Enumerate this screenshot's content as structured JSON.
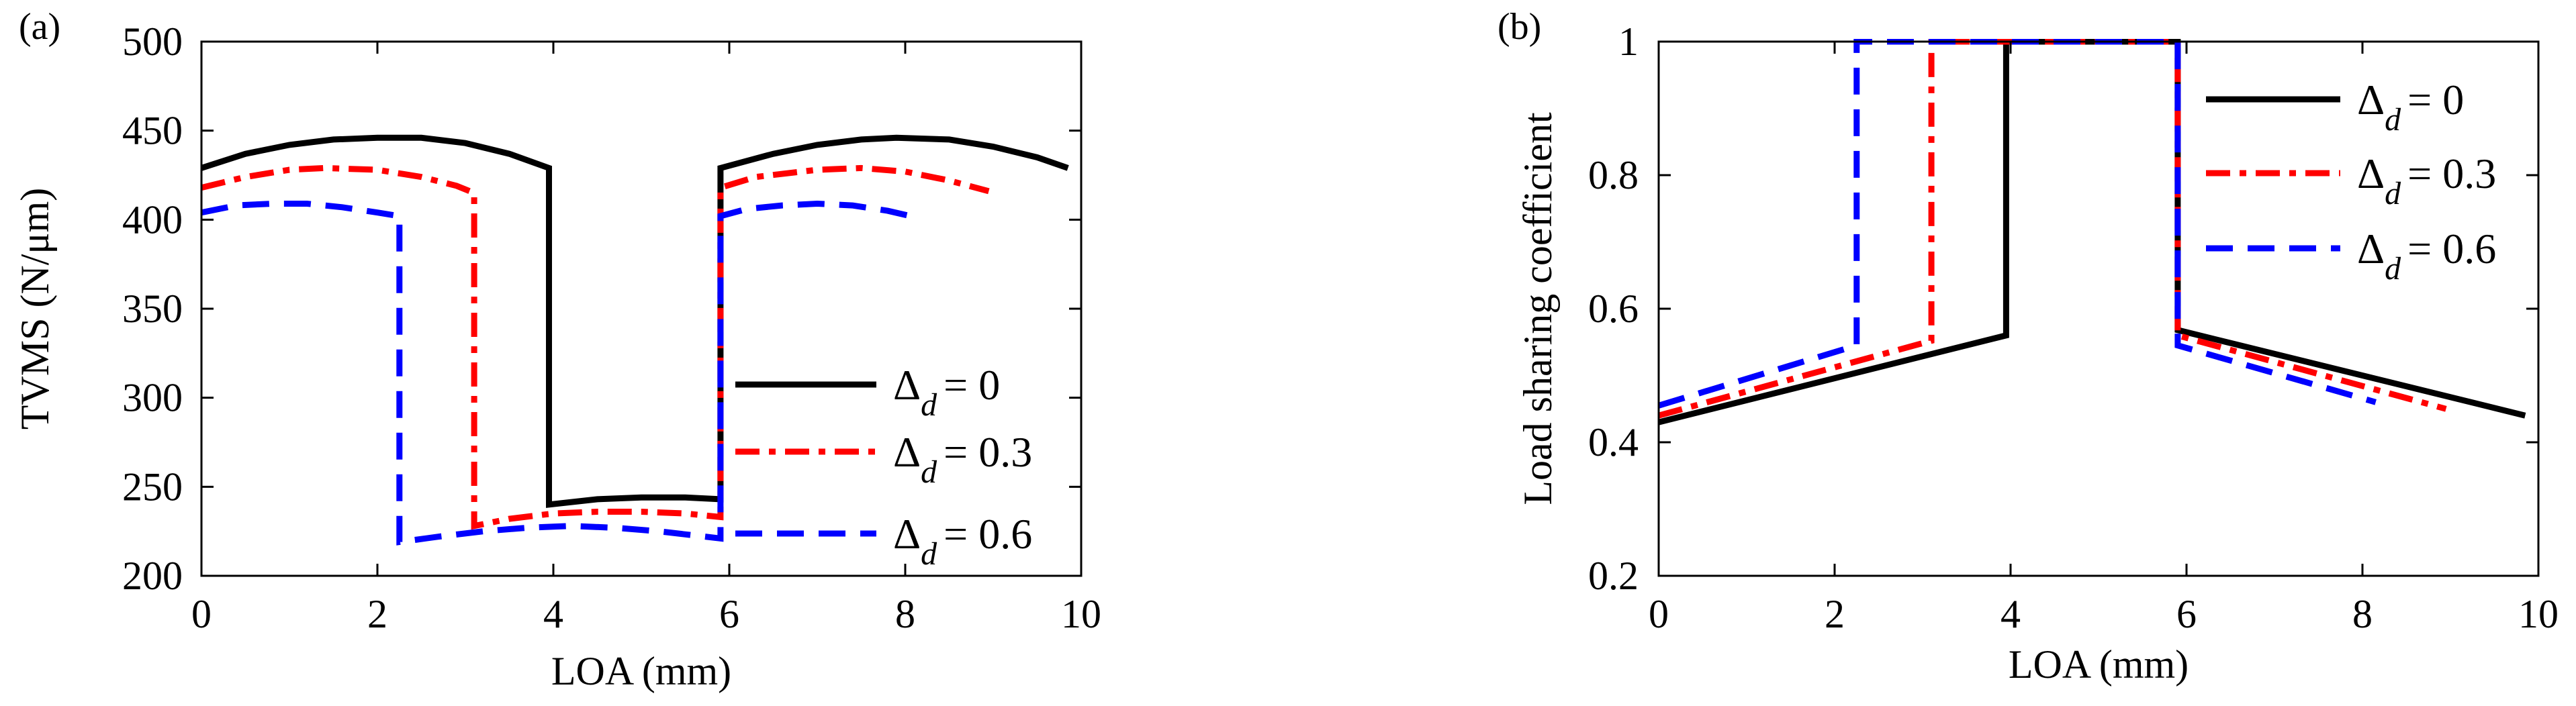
{
  "colors": {
    "axis": "#000000",
    "series": [
      "#000000",
      "#ff0000",
      "#0000ff"
    ]
  },
  "legend_prefix": "Δ",
  "legend_sub": "d",
  "chart_data": [
    {
      "type": "line",
      "panel_label": "(a)",
      "xlabel": "LOA (mm)",
      "ylabel": "TVMS (N/μm)",
      "xlim": [
        0,
        10
      ],
      "ylim": [
        200,
        500
      ],
      "xticks": [
        0,
        2,
        4,
        6,
        8,
        10
      ],
      "yticks": [
        200,
        250,
        300,
        350,
        400,
        450,
        500
      ],
      "legend_position": "lower-right",
      "grid": false,
      "series": [
        {
          "name": "= 0",
          "color": "#000000",
          "dash": "solid",
          "x": [
            0,
            0.5,
            1,
            1.5,
            2,
            2.5,
            3,
            3.5,
            3.95,
            3.95,
            4.5,
            5,
            5.5,
            5.9,
            5.9,
            6.5,
            7,
            7.5,
            7.9,
            8.5,
            9,
            9.5,
            9.85
          ],
          "y": [
            429,
            437,
            442,
            445,
            446,
            446,
            443,
            437,
            429,
            240,
            243,
            244,
            244,
            243,
            429,
            437,
            442,
            445,
            446,
            445,
            441,
            435,
            429
          ]
        },
        {
          "name": "= 0.3",
          "color": "#ff0000",
          "dash": "dashdot",
          "x": [
            0,
            0.5,
            1,
            1.4,
            2,
            2.5,
            2.9,
            3.1,
            3.1,
            3.5,
            4,
            4.5,
            5,
            5.5,
            5.9,
            5.9,
            6.3,
            7,
            7.5,
            8,
            8.5,
            8.95
          ],
          "y": [
            418,
            424,
            428,
            429,
            428,
            424,
            419,
            415,
            228,
            232,
            235,
            236,
            236,
            235,
            233,
            418,
            424,
            428,
            429,
            427,
            422,
            416
          ]
        },
        {
          "name": "= 0.6",
          "color": "#0000ff",
          "dash": "dashed",
          "x": [
            0,
            0.4,
            0.8,
            1.2,
            1.6,
            2,
            2.25,
            2.25,
            2.7,
            3.2,
            3.7,
            4.2,
            4.7,
            5.2,
            5.9,
            5.9,
            6.2,
            6.6,
            7,
            7.4,
            7.8,
            8.15
          ],
          "y": [
            404,
            408,
            409,
            409,
            407,
            404,
            402,
            219,
            222,
            225,
            227,
            228,
            227,
            225,
            221,
            402,
            406,
            408,
            409,
            408,
            405,
            401
          ]
        }
      ]
    },
    {
      "type": "line",
      "panel_label": "(b)",
      "xlabel": "LOA (mm)",
      "ylabel": "Load sharing coefficient",
      "xlim": [
        0,
        10
      ],
      "ylim": [
        0.2,
        1
      ],
      "xticks": [
        0,
        2,
        4,
        6,
        8,
        10
      ],
      "yticks": [
        0.2,
        0.4,
        0.6,
        0.8,
        1
      ],
      "legend_position": "upper-right",
      "grid": false,
      "series": [
        {
          "name": "= 0",
          "color": "#000000",
          "dash": "solid",
          "x": [
            0,
            3.95,
            3.95,
            5.9,
            5.9,
            9.85
          ],
          "y": [
            0.43,
            0.56,
            1,
            1,
            0.568,
            0.44
          ]
        },
        {
          "name": "= 0.3",
          "color": "#ff0000",
          "dash": "dashdot",
          "x": [
            0,
            3.1,
            3.1,
            5.9,
            5.9,
            8.95
          ],
          "y": [
            0.44,
            0.552,
            1,
            1,
            0.56,
            0.45
          ]
        },
        {
          "name": "= 0.6",
          "color": "#0000ff",
          "dash": "dashed",
          "x": [
            0,
            2.25,
            2.25,
            5.9,
            5.9,
            8.15
          ],
          "y": [
            0.455,
            0.545,
            1,
            1,
            0.545,
            0.46
          ]
        }
      ]
    }
  ]
}
